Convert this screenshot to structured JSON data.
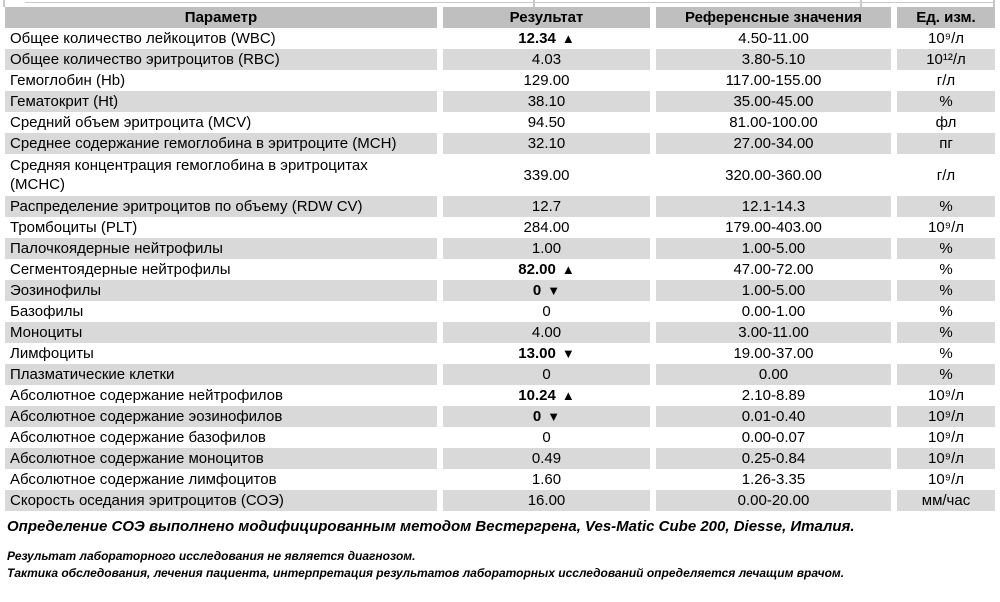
{
  "colors": {
    "header_bg": "#bfbfbf",
    "alt_row_bg": "#d9d9d9",
    "row_bg": "#ffffff",
    "text": "#000000",
    "edge_line": "#c9c9c9"
  },
  "table": {
    "headers": [
      "Параметр",
      "Результат",
      "Референсные значения",
      "Ед. изм."
    ],
    "rows": [
      {
        "param": "Общее количество лейкоцитов (WBC)",
        "result": "12.34",
        "arrow": "▲",
        "abnormal": true,
        "ref": "4.50-11.00",
        "unit": "10⁹/л"
      },
      {
        "param": "Общее количество эритроцитов (RBC)",
        "result": "4.03",
        "arrow": "",
        "abnormal": false,
        "ref": "3.80-5.10",
        "unit": "10¹²/л"
      },
      {
        "param": "Гемоглобин (Hb)",
        "result": "129.00",
        "arrow": "",
        "abnormal": false,
        "ref": "117.00-155.00",
        "unit": "г/л"
      },
      {
        "param": "Гематокрит (Ht)",
        "result": "38.10",
        "arrow": "",
        "abnormal": false,
        "ref": "35.00-45.00",
        "unit": "%"
      },
      {
        "param": "Средний объем эритроцита (MCV)",
        "result": "94.50",
        "arrow": "",
        "abnormal": false,
        "ref": "81.00-100.00",
        "unit": "фл"
      },
      {
        "param": "Среднее содержание гемоглобина в эритроците (MCH)",
        "result": "32.10",
        "arrow": "",
        "abnormal": false,
        "ref": "27.00-34.00",
        "unit": "пг"
      },
      {
        "param": "Средняя концентрация гемоглобина в эритроцитах\n(MCHC)",
        "result": "339.00",
        "arrow": "",
        "abnormal": false,
        "ref": "320.00-360.00",
        "unit": "г/л",
        "tall": true
      },
      {
        "param": "Распределение эритроцитов по объему (RDW CV)",
        "result": "12.7",
        "arrow": "",
        "abnormal": false,
        "ref": "12.1-14.3",
        "unit": "%"
      },
      {
        "param": "Тромбоциты (PLT)",
        "result": "284.00",
        "arrow": "",
        "abnormal": false,
        "ref": "179.00-403.00",
        "unit": "10⁹/л"
      },
      {
        "param": "Палочкоядерные нейтрофилы",
        "result": "1.00",
        "arrow": "",
        "abnormal": false,
        "ref": "1.00-5.00",
        "unit": "%"
      },
      {
        "param": "Сегментоядерные нейтрофилы",
        "result": "82.00",
        "arrow": "▲",
        "abnormal": true,
        "ref": "47.00-72.00",
        "unit": "%"
      },
      {
        "param": "Эозинофилы",
        "result": "0",
        "arrow": "▼",
        "abnormal": true,
        "ref": "1.00-5.00",
        "unit": "%"
      },
      {
        "param": "Базофилы",
        "result": "0",
        "arrow": "",
        "abnormal": false,
        "ref": "0.00-1.00",
        "unit": "%"
      },
      {
        "param": "Моноциты",
        "result": "4.00",
        "arrow": "",
        "abnormal": false,
        "ref": "3.00-11.00",
        "unit": "%"
      },
      {
        "param": "Лимфоциты",
        "result": "13.00",
        "arrow": "▼",
        "abnormal": true,
        "ref": "19.00-37.00",
        "unit": "%"
      },
      {
        "param": "Плазматические клетки",
        "result": "0",
        "arrow": "",
        "abnormal": false,
        "ref": "0.00",
        "unit": "%"
      },
      {
        "param": "Абсолютное содержание нейтрофилов",
        "result": "10.24",
        "arrow": "▲",
        "abnormal": true,
        "ref": "2.10-8.89",
        "unit": "10⁹/л"
      },
      {
        "param": "Абсолютное содержание эозинофилов",
        "result": "0",
        "arrow": "▼",
        "abnormal": true,
        "ref": "0.01-0.40",
        "unit": "10⁹/л"
      },
      {
        "param": "Абсолютное содержание базофилов",
        "result": "0",
        "arrow": "",
        "abnormal": false,
        "ref": "0.00-0.07",
        "unit": "10⁹/л"
      },
      {
        "param": "Абсолютное содержание моноцитов",
        "result": "0.49",
        "arrow": "",
        "abnormal": false,
        "ref": "0.25-0.84",
        "unit": "10⁹/л"
      },
      {
        "param": "Абсолютное содержание лимфоцитов",
        "result": "1.60",
        "arrow": "",
        "abnormal": false,
        "ref": "1.26-3.35",
        "unit": "10⁹/л"
      },
      {
        "param": "Скорость оседания эритроцитов (СОЭ)",
        "result": "16.00",
        "arrow": "",
        "abnormal": false,
        "ref": "0.00-20.00",
        "unit": "мм/час"
      }
    ]
  },
  "footer": {
    "method_note": "Определение СОЭ выполнено модифицированным методом Вестергрена, Ves-Matic Cube 200, Diesse, Италия.",
    "disclaimer_1": "Результат лабораторного исследования не является диагнозом.",
    "disclaimer_2": "Тактика обследования, лечения пациента, интерпретация результатов лабораторных исследований определяется лечащим врачом."
  }
}
